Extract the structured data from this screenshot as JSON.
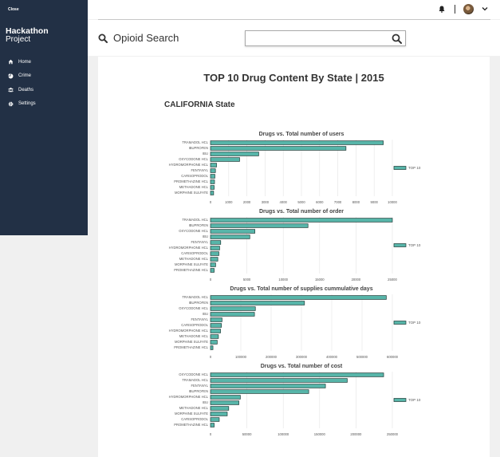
{
  "sidebar": {
    "close_label": "Close",
    "brand_title": "Hackathon",
    "brand_subtitle": "Project",
    "items": [
      {
        "label": "Home",
        "icon": "home-icon"
      },
      {
        "label": "Crime",
        "icon": "chart-pie-icon"
      },
      {
        "label": "Deaths",
        "icon": "users-icon"
      },
      {
        "label": "Settings",
        "icon": "gear-icon"
      }
    ]
  },
  "header": {
    "title": "Opioid Search",
    "search_value": "",
    "search_placeholder": ""
  },
  "main": {
    "title": "TOP 10 Drug Content By State | 2015",
    "state": "CALIFORNIA State"
  },
  "colors": {
    "bar_fill": "#57b5a9",
    "bar_stroke": "#1d3a36",
    "sidebar": "#223045"
  },
  "chart_data": [
    {
      "type": "bar",
      "title": "Drugs vs. Total number of users",
      "legend": "TOP 10",
      "legend_position": "right",
      "xlim": [
        0,
        10000
      ],
      "ticks": [
        "0",
        "1000",
        "2000",
        "3000",
        "4000",
        "5000",
        "6000",
        "7000",
        "8000",
        "9000",
        "10000"
      ],
      "categories": [
        "TRAMADOL HCL",
        "IBUPROFEN",
        "IBU",
        "OXYCODONE HCL",
        "HYDROMORPHONE HCL",
        "FENTANYL",
        "CARISOPRODOL",
        "PROMETHAZINE HCL",
        "METHADONE HCL",
        "MORPHINE SULFATE"
      ],
      "values": [
        9500,
        7450,
        2650,
        1600,
        330,
        270,
        240,
        220,
        200,
        170
      ]
    },
    {
      "type": "bar",
      "title": "Drugs vs. Total number of order",
      "legend": "TOP 10",
      "legend_position": "right",
      "xlim": [
        0,
        25000
      ],
      "ticks": [
        "0",
        "5000",
        "10000",
        "15000",
        "20000",
        "25000"
      ],
      "categories": [
        "TRAMADOL HCL",
        "IBUPROFEN",
        "OXYCODONE HCL",
        "IBU",
        "FENTANYL",
        "HYDROMORPHONE HCL",
        "CARISOPRODOL",
        "METHADONE HCL",
        "MORPHINE SULFATE",
        "PROMETHAZINE HCL"
      ],
      "values": [
        25000,
        13400,
        6100,
        5400,
        1400,
        1250,
        1150,
        1000,
        700,
        500
      ]
    },
    {
      "type": "bar",
      "title": "Drugs vs. Total number of supplies cummulative days",
      "legend": "TOP 10",
      "legend_position": "right",
      "xlim": [
        0,
        600000
      ],
      "ticks": [
        "0",
        "100000",
        "200000",
        "300000",
        "400000",
        "500000",
        "600000"
      ],
      "categories": [
        "TRAMADOL HCL",
        "IBUPROFEN",
        "OXYCODONE HCL",
        "IBU",
        "FENTANYL",
        "CARISOPRODOL",
        "HYDROMORPHONE HCL",
        "METHADONE HCL",
        "MORPHINE SULFATE",
        "PROMETHAZINE HCL"
      ],
      "values": [
        580000,
        310000,
        148000,
        145000,
        38000,
        36000,
        33000,
        26000,
        22000,
        8000
      ]
    },
    {
      "type": "bar",
      "title": "Drugs vs. Total number of cost",
      "legend": "TOP 10",
      "legend_position": "right",
      "xlim": [
        0,
        250000
      ],
      "ticks": [
        "0",
        "50000",
        "100000",
        "150000",
        "200000",
        "250000"
      ],
      "categories": [
        "OXYCODONE HCL",
        "TRAMADOL HCL",
        "FENTANYL",
        "IBUPROFEN",
        "HYDROMORPHONE HCL",
        "IBU",
        "METHADONE HCL",
        "MORPHINE SULFATE",
        "CARISOPRODOL",
        "PROMETHAZINE HCL"
      ],
      "values": [
        238000,
        188000,
        158000,
        135000,
        41000,
        39000,
        25000,
        23000,
        12000,
        5000
      ]
    }
  ]
}
